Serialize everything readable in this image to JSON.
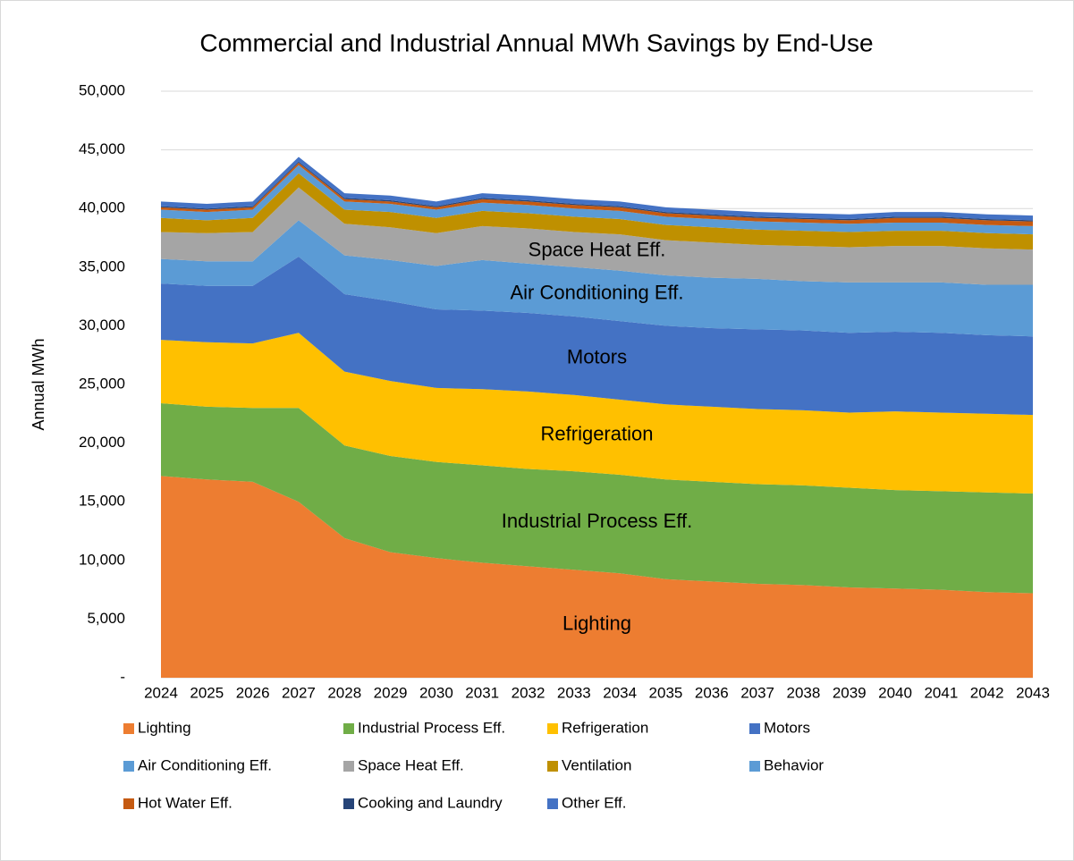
{
  "chart_data": {
    "type": "stacked_area",
    "title": "Commercial and Industrial Annual MWh Savings by End-Use",
    "y_label": "Annual MWh",
    "categories": [
      "2024",
      "2025",
      "2026",
      "2027",
      "2028",
      "2029",
      "2030",
      "2031",
      "2032",
      "2033",
      "2034",
      "2035",
      "2036",
      "2037",
      "2038",
      "2039",
      "2040",
      "2041",
      "2042",
      "2043"
    ],
    "series": [
      {
        "name": "Lighting",
        "color": "#ed7d31",
        "values": [
          17200,
          16900,
          16700,
          15000,
          11900,
          10700,
          10200,
          9800,
          9500,
          9200,
          8900,
          8400,
          8200,
          8000,
          7900,
          7700,
          7600,
          7500,
          7300,
          7200
        ]
      },
      {
        "name": "Industrial Process Eff.",
        "color": "#70ad47",
        "values": [
          6200,
          6200,
          6300,
          8000,
          7900,
          8200,
          8200,
          8300,
          8300,
          8400,
          8400,
          8500,
          8500,
          8500,
          8500,
          8500,
          8400,
          8400,
          8500,
          8500
        ]
      },
      {
        "name": "Refrigeration",
        "color": "#ffc000",
        "values": [
          5400,
          5500,
          5500,
          6400,
          6300,
          6400,
          6300,
          6500,
          6600,
          6500,
          6400,
          6400,
          6400,
          6400,
          6400,
          6400,
          6700,
          6700,
          6700,
          6700
        ]
      },
      {
        "name": "Motors",
        "color": "#4472c4",
        "values": [
          4800,
          4800,
          4900,
          6500,
          6600,
          6800,
          6700,
          6700,
          6700,
          6700,
          6700,
          6700,
          6700,
          6800,
          6800,
          6800,
          6800,
          6800,
          6700,
          6700
        ]
      },
      {
        "name": "Air Conditioning Eff.",
        "color": "#5b9bd5",
        "values": [
          2100,
          2100,
          2100,
          3100,
          3300,
          3500,
          3700,
          4300,
          4200,
          4200,
          4300,
          4300,
          4300,
          4300,
          4200,
          4300,
          4200,
          4300,
          4300,
          4400
        ]
      },
      {
        "name": "Space Heat Eff.",
        "color": "#a5a5a5",
        "values": [
          2300,
          2400,
          2500,
          2800,
          2700,
          2800,
          2800,
          2900,
          3000,
          3000,
          3100,
          3000,
          3000,
          2900,
          3000,
          3000,
          3100,
          3100,
          3100,
          3000
        ]
      },
      {
        "name": "Ventilation",
        "color": "#bf9000",
        "values": [
          1200,
          1100,
          1200,
          1200,
          1200,
          1300,
          1300,
          1300,
          1300,
          1300,
          1300,
          1300,
          1300,
          1300,
          1300,
          1300,
          1300,
          1300,
          1300,
          1300
        ]
      },
      {
        "name": "Behavior",
        "color": "#5b9bd5",
        "values": [
          700,
          700,
          700,
          700,
          700,
          700,
          700,
          700,
          700,
          700,
          700,
          700,
          700,
          700,
          700,
          700,
          700,
          700,
          700,
          700
        ]
      },
      {
        "name": "Hot Water Eff.",
        "color": "#c55a11",
        "values": [
          200,
          200,
          200,
          200,
          200,
          200,
          200,
          300,
          300,
          300,
          300,
          300,
          300,
          300,
          300,
          300,
          400,
          400,
          400,
          400
        ]
      },
      {
        "name": "Cooking and Laundry",
        "color": "#264478",
        "values": [
          100,
          100,
          100,
          100,
          100,
          100,
          100,
          100,
          100,
          100,
          100,
          100,
          100,
          100,
          100,
          100,
          100,
          100,
          100,
          100
        ]
      },
      {
        "name": "Other Eff.",
        "color": "#4472c4",
        "values": [
          400,
          400,
          400,
          400,
          400,
          400,
          400,
          400,
          400,
          400,
          400,
          400,
          400,
          400,
          400,
          400,
          400,
          400,
          400,
          400
        ]
      }
    ],
    "ylim": [
      0,
      50000
    ],
    "yticks": [
      {
        "value": 0,
        "label": "-"
      },
      {
        "value": 5000,
        "label": "5,000"
      },
      {
        "value": 10000,
        "label": "10,000"
      },
      {
        "value": 15000,
        "label": "15,000"
      },
      {
        "value": 20000,
        "label": "20,000"
      },
      {
        "value": 25000,
        "label": "25,000"
      },
      {
        "value": 30000,
        "label": "30,000"
      },
      {
        "value": 35000,
        "label": "35,000"
      },
      {
        "value": 40000,
        "label": "40,000"
      },
      {
        "value": 45000,
        "label": "45,000"
      },
      {
        "value": 50000,
        "label": "50,000"
      }
    ],
    "grid": true,
    "legend": "bottom"
  }
}
